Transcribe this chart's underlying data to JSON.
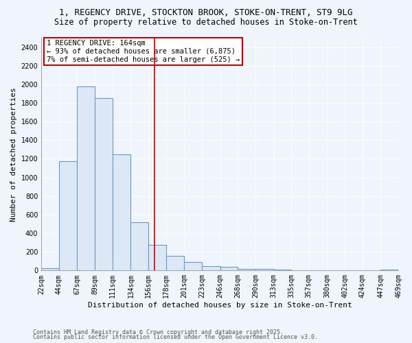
{
  "title_line1": "1, REGENCY DRIVE, STOCKTON BROOK, STOKE-ON-TRENT, ST9 9LG",
  "title_line2": "Size of property relative to detached houses in Stoke-on-Trent",
  "xlabel": "Distribution of detached houses by size in Stoke-on-Trent",
  "ylabel": "Number of detached properties",
  "bar_left_edges": [
    22,
    44,
    67,
    89,
    111,
    134,
    156,
    178,
    201,
    223,
    246,
    268,
    290,
    313,
    335,
    357,
    380,
    402,
    424,
    447
  ],
  "bar_right_edges": [
    44,
    67,
    89,
    111,
    134,
    156,
    178,
    201,
    223,
    246,
    268,
    290,
    313,
    335,
    357,
    380,
    402,
    424,
    447,
    469
  ],
  "bar_heights": [
    25,
    1175,
    1975,
    1850,
    1245,
    515,
    275,
    155,
    90,
    50,
    42,
    20,
    15,
    10,
    5,
    4,
    3,
    2,
    2,
    10
  ],
  "bar_color": "#dce8f5",
  "bar_edge_color": "#6699cc",
  "vline_x": 164,
  "vline_color": "#cc0000",
  "ylim": [
    0,
    2500
  ],
  "yticks": [
    0,
    200,
    400,
    600,
    800,
    1000,
    1200,
    1400,
    1600,
    1800,
    2000,
    2200,
    2400
  ],
  "annotation_title": "1 REGENCY DRIVE: 164sqm",
  "annotation_line1": "← 93% of detached houses are smaller (6,875)",
  "annotation_line2": "7% of semi-detached houses are larger (525) →",
  "annotation_box_facecolor": "#ffffff",
  "annotation_box_edgecolor": "#cc0000",
  "tick_labels": [
    "22sqm",
    "44sqm",
    "67sqm",
    "89sqm",
    "111sqm",
    "134sqm",
    "156sqm",
    "178sqm",
    "201sqm",
    "223sqm",
    "246sqm",
    "268sqm",
    "290sqm",
    "313sqm",
    "335sqm",
    "357sqm",
    "380sqm",
    "402sqm",
    "424sqm",
    "447sqm",
    "469sqm"
  ],
  "footnote1": "Contains HM Land Registry data © Crown copyright and database right 2025.",
  "footnote2": "Contains public sector information licensed under the Open Government Licence v3.0.",
  "fig_facecolor": "#f0f4fc",
  "axes_facecolor": "#f0f4fc",
  "grid_color": "#ffffff",
  "title_fontsize": 9,
  "subtitle_fontsize": 8.5,
  "axis_label_fontsize": 8,
  "tick_fontsize": 7,
  "annotation_fontsize": 7.5,
  "footnote_fontsize": 6
}
